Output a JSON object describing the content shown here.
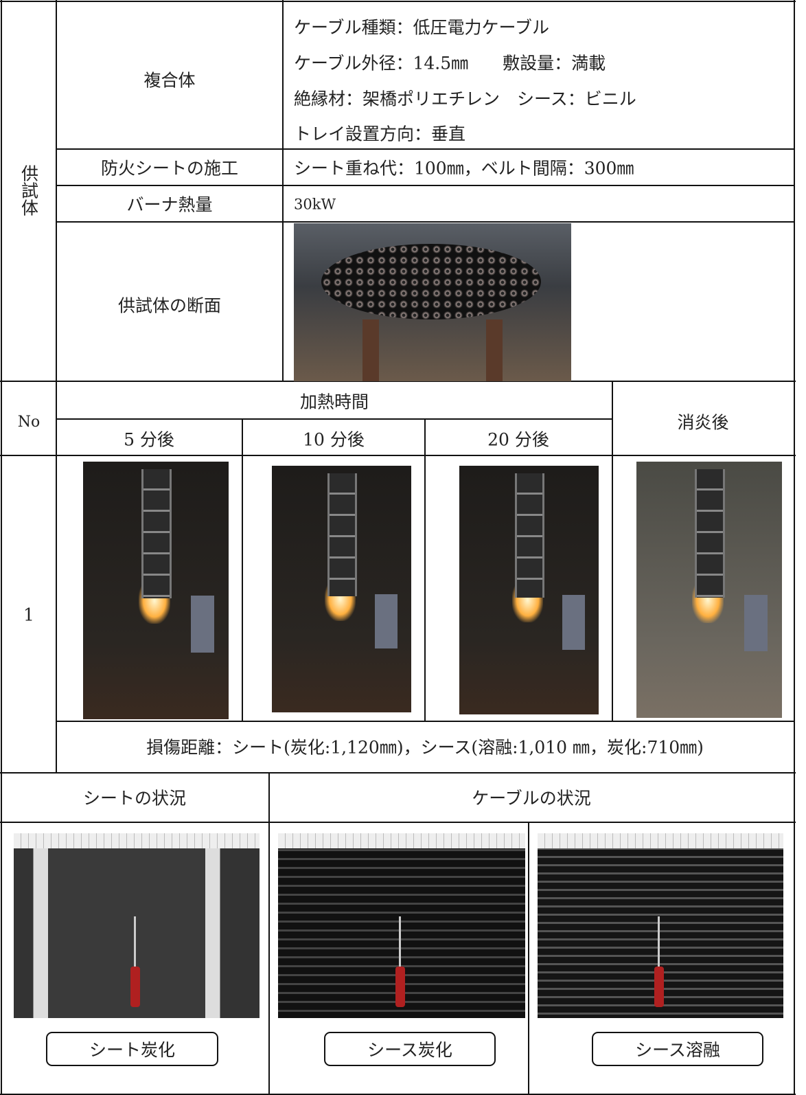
{
  "specimen": {
    "label": "供試体",
    "rows": [
      {
        "label": "複合体",
        "lines": [
          "ケーブル種類：低圧電力ケーブル",
          "ケーブル外径：14.5㎜　　敷設量：満載",
          "絶縁材：架橋ポリエチレン　シース：ビニル",
          "トレイ設置方向：垂直"
        ]
      },
      {
        "label": "防火シートの施工",
        "text": "シート重ね代：100㎜，ベルト間隔：300㎜"
      },
      {
        "label": "バーナ熱量",
        "text": "30kW"
      },
      {
        "label": "供試体の断面"
      }
    ]
  },
  "heating": {
    "no_header": "No",
    "group_header": "加熱時間",
    "columns": [
      "5 分後",
      "10 分後",
      "20 分後"
    ],
    "after_header": "消炎後",
    "row": {
      "no": "1",
      "damage": "損傷距離：シート(炭化:1,120㎜)，シース(溶融:1,010 ㎜，炭化:710㎜)"
    }
  },
  "condition": {
    "sheet_header": "シートの状況",
    "cable_header": "ケーブルの状況",
    "captions": [
      "シート炭化",
      "シース炭化",
      "シース溶融"
    ]
  }
}
